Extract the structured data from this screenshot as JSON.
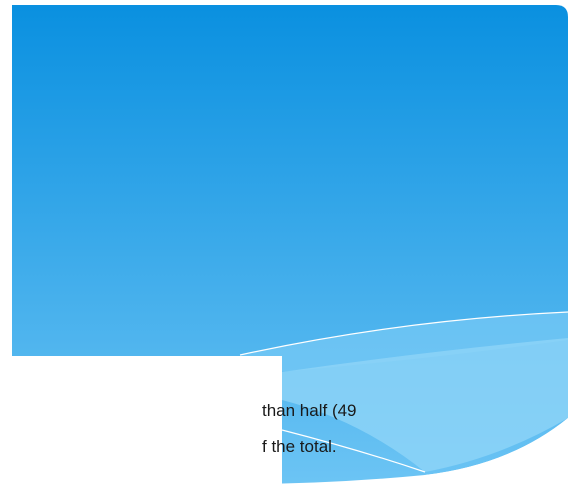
{
  "text": {
    "lines": [
      "than half (49",
      "f the total."
    ]
  }
}
